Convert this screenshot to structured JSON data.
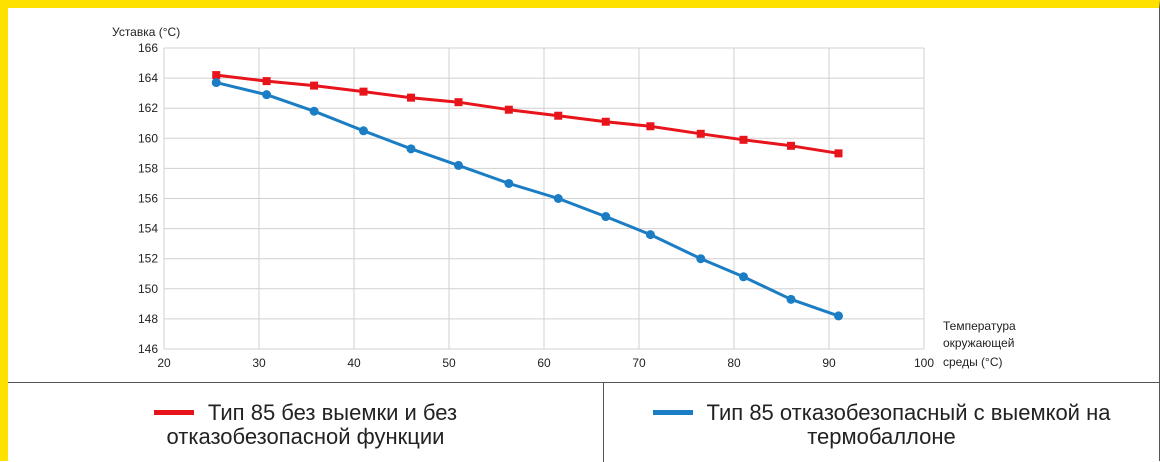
{
  "chart_data": {
    "type": "line",
    "ylabel": "Уставка (°C)",
    "xlabel_lines": [
      "Температура",
      "окружающей",
      "среды  (°C)"
    ],
    "xlim": [
      20,
      100
    ],
    "ylim": [
      146,
      166
    ],
    "x_ticks": [
      20,
      30,
      40,
      50,
      60,
      70,
      80,
      90,
      100
    ],
    "y_ticks": [
      146,
      148,
      150,
      152,
      154,
      156,
      158,
      160,
      162,
      164,
      166
    ],
    "grid": true,
    "series": [
      {
        "name": "Тип 85 без выемки и без отказобезопасной функции",
        "color": "#e8141b",
        "marker": "square",
        "x": [
          25.5,
          30.8,
          35.8,
          41,
          46,
          51,
          56.3,
          61.5,
          66.5,
          71.2,
          76.5,
          81,
          86,
          91
        ],
        "y": [
          164.2,
          163.8,
          163.5,
          163.1,
          162.7,
          162.4,
          161.9,
          161.5,
          161.1,
          160.8,
          160.3,
          159.9,
          159.5,
          159.0
        ]
      },
      {
        "name": "Тип 85 отказобезопасный с выемкой на термобаллоне",
        "color": "#1b7dc4",
        "marker": "circle",
        "x": [
          25.5,
          30.8,
          35.8,
          41,
          46,
          51,
          56.3,
          61.5,
          66.5,
          71.2,
          76.5,
          81,
          86,
          91
        ],
        "y": [
          163.7,
          162.9,
          161.8,
          160.5,
          159.3,
          158.2,
          157.0,
          156.0,
          154.8,
          153.6,
          152.0,
          150.8,
          149.3,
          148.2
        ]
      }
    ]
  },
  "legend": {
    "item1_line1": "Тип 85 без выемки и без",
    "item1_line2": "отказобезопасной функции",
    "item2_line1": "Тип 85 отказобезопасный с выемкой на",
    "item2_line2": "термобаллоне"
  }
}
